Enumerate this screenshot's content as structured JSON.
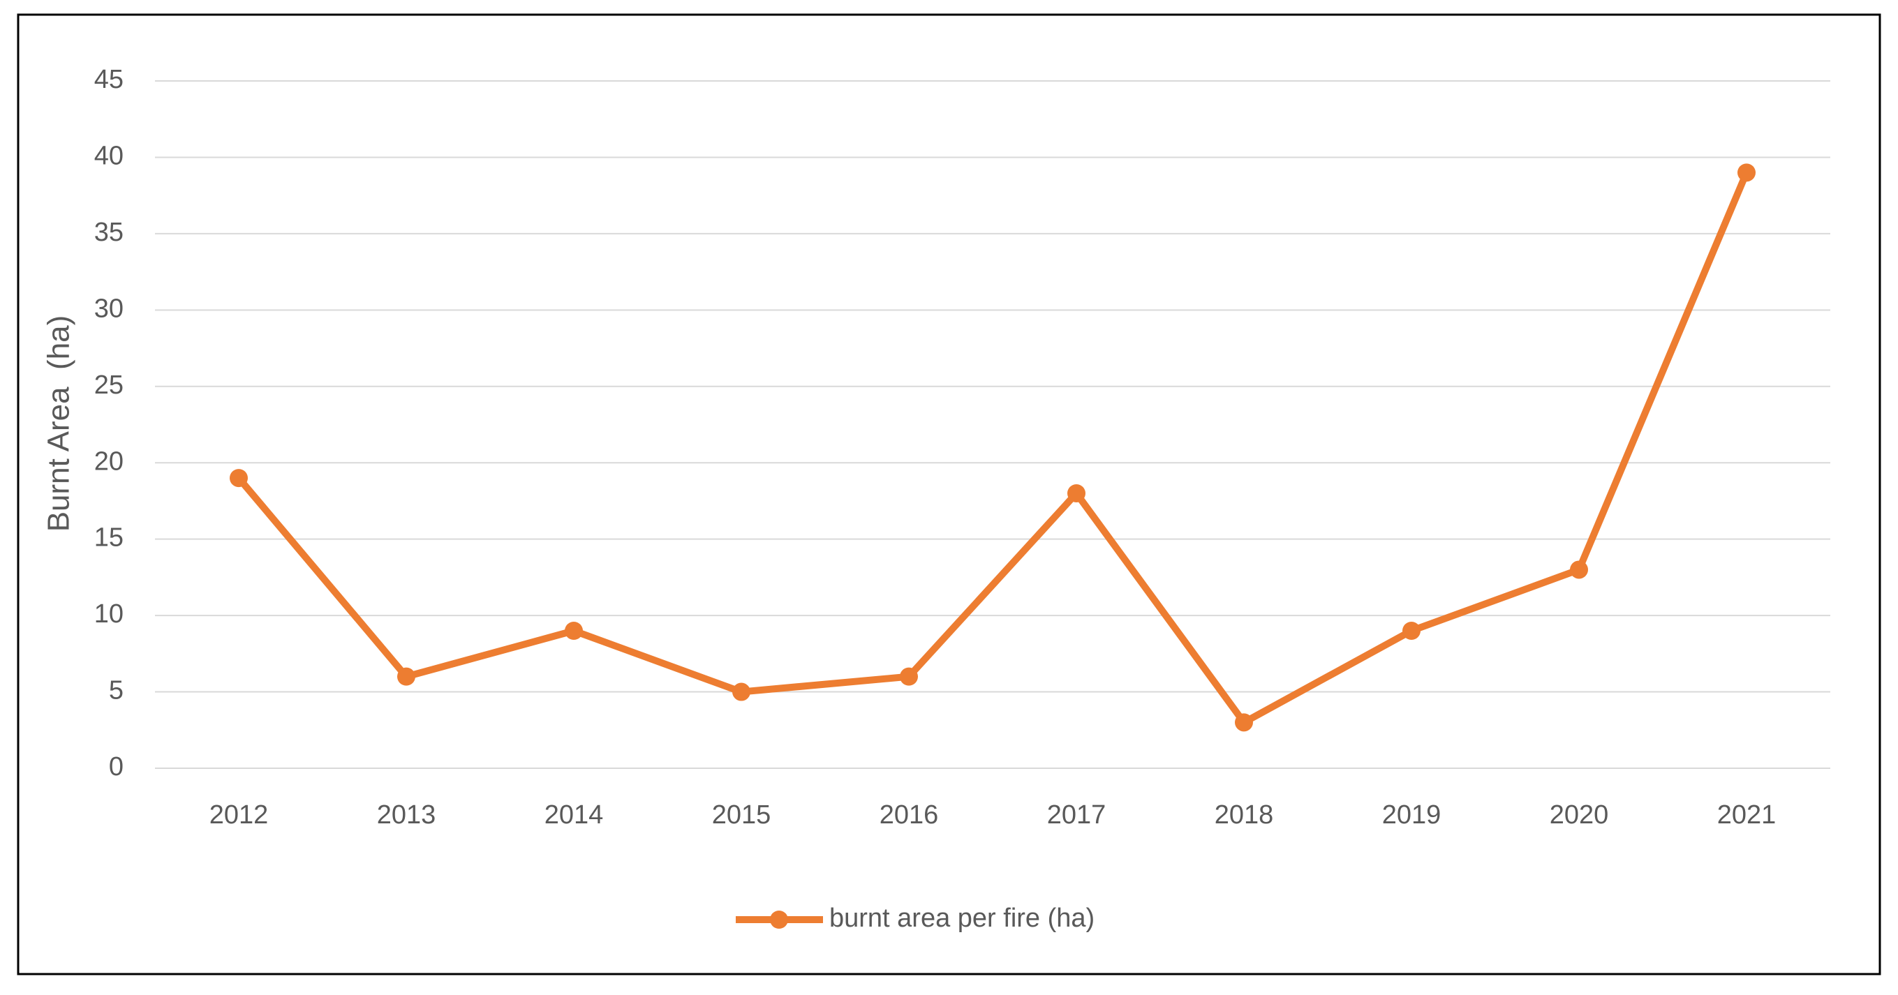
{
  "chart_data": {
    "type": "line",
    "y_label": "Burnt Area  (ha)",
    "categories": [
      "2012",
      "2013",
      "2014",
      "2015",
      "2016",
      "2017",
      "2018",
      "2019",
      "2020",
      "2021"
    ],
    "series": [
      {
        "name": "burnt area per fire (ha)",
        "color": "#ed7d31",
        "values": [
          19,
          6,
          9,
          5,
          6,
          18,
          3,
          9,
          13,
          39
        ]
      }
    ],
    "ylim": [
      0,
      45
    ],
    "yticks": [
      0,
      5,
      10,
      15,
      20,
      25,
      30,
      35,
      40,
      45
    ],
    "grid": true,
    "legend": "bottom"
  }
}
